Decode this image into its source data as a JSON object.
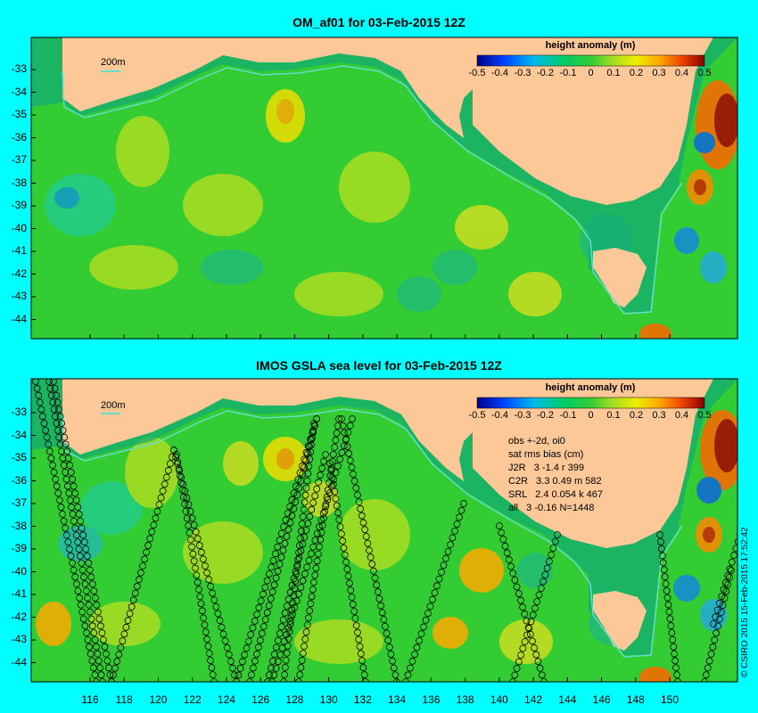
{
  "panels": [
    {
      "title": "OM_af01 for 03-Feb-2015 12Z",
      "scale_label": "200m",
      "colorbar_title": "height anomaly (m)"
    },
    {
      "title": "IMOS GSLA sea level  for 03-Feb-2015 12Z",
      "scale_label": "200m",
      "colorbar_title": "height anomaly (m)",
      "stats": {
        "line1": "obs +-2d, oi0",
        "line2": "sat rms bias (cm)",
        "line3": "J2R   3 -1.4 r 399",
        "line4": "C2R   3.3 0.49 m 582",
        "line5": "SRL   2.4 0.054 k 467",
        "line6": "all   3 -0.16 N=1448"
      }
    }
  ],
  "colorbar_ticks": [
    "-0.5",
    "-0.4",
    "-0.3",
    "-0.2",
    "-0.1",
    "0",
    "0.1",
    "0.2",
    "0.3",
    "0.4",
    "0.5"
  ],
  "y_ticks": [
    "-33",
    "-34",
    "-35",
    "-36",
    "-37",
    "-38",
    "-39",
    "-40",
    "-41",
    "-42",
    "-43",
    "-44"
  ],
  "x_ticks": [
    "116",
    "118",
    "120",
    "122",
    "124",
    "126",
    "128",
    "130",
    "132",
    "134",
    "136",
    "138",
    "140",
    "142",
    "144",
    "146",
    "148",
    "150"
  ],
  "copyright": "© CSIRO 2015  15-Feb-2015 17:52:42",
  "colors": {
    "background": "#00ffff",
    "land": "#fdc897",
    "ocean_base": "#33cc33",
    "coast_contour": "#66ddcc"
  }
}
